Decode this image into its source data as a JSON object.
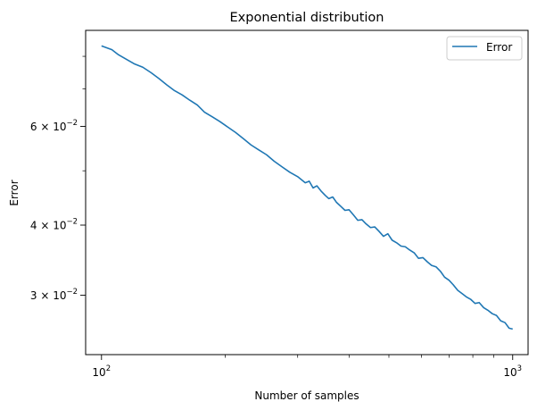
{
  "chart_data": {
    "type": "line",
    "title": "Exponential distribution",
    "xlabel": "Number of samples",
    "ylabel": "Error",
    "x_scale": "log",
    "y_scale": "log",
    "xlim": [
      91.5,
      1090
    ],
    "ylim": [
      0.0235,
      0.089
    ],
    "grid": false,
    "legend_position": "top-right",
    "x_major_ticks": [
      {
        "value": 100,
        "label": "10",
        "sup": "2"
      },
      {
        "value": 1000,
        "label": "10",
        "sup": "3"
      }
    ],
    "x_minor_ticks": [
      200,
      300,
      400,
      500,
      600,
      700,
      800,
      900
    ],
    "y_major_ticks": [
      {
        "value": 0.03,
        "label": "3 × 10",
        "sup": "−2"
      },
      {
        "value": 0.04,
        "label": "4 × 10",
        "sup": "−2"
      },
      {
        "value": 0.06,
        "label": "6 × 10",
        "sup": "−2"
      }
    ],
    "y_minor_ticks": [
      0.05,
      0.07,
      0.08
    ],
    "series": [
      {
        "name": "Error",
        "color": "#1f77b4",
        "x": [
          100,
          106,
          110,
          115,
          120,
          126,
          132,
          138,
          144,
          150,
          157,
          164,
          171,
          178,
          186,
          194,
          203,
          212,
          221,
          231,
          241,
          252,
          263,
          275,
          287,
          300,
          313,
          320,
          327,
          334,
          342,
          350,
          357,
          365,
          373,
          382,
          391,
          400,
          410,
          420,
          430,
          440,
          451,
          462,
          473,
          485,
          497,
          509,
          522,
          535,
          548,
          562,
          576,
          590,
          605,
          620,
          635,
          651,
          667,
          683,
          700,
          717,
          735,
          753,
          771,
          790,
          810,
          829,
          850,
          870,
          892,
          913,
          935,
          958,
          980,
          1000
        ],
        "y": [
          0.0835,
          0.0822,
          0.0805,
          0.079,
          0.0776,
          0.0765,
          0.0748,
          0.073,
          0.0712,
          0.0696,
          0.0683,
          0.0668,
          0.0655,
          0.0636,
          0.0624,
          0.0612,
          0.0598,
          0.0585,
          0.0571,
          0.0556,
          0.0545,
          0.0534,
          0.052,
          0.0508,
          0.0497,
          0.0488,
          0.0476,
          0.0479,
          0.0466,
          0.047,
          0.046,
          0.0452,
          0.0446,
          0.0449,
          0.0439,
          0.0432,
          0.0425,
          0.0426,
          0.0417,
          0.0408,
          0.0409,
          0.0402,
          0.0396,
          0.0397,
          0.039,
          0.0382,
          0.0386,
          0.0376,
          0.0372,
          0.0367,
          0.0366,
          0.0361,
          0.0357,
          0.0349,
          0.035,
          0.0344,
          0.0339,
          0.0337,
          0.0331,
          0.0323,
          0.0319,
          0.0313,
          0.0306,
          0.0302,
          0.0298,
          0.0295,
          0.029,
          0.0291,
          0.0285,
          0.0282,
          0.0278,
          0.0276,
          0.027,
          0.0268,
          0.0262,
          0.0261
        ]
      }
    ]
  }
}
